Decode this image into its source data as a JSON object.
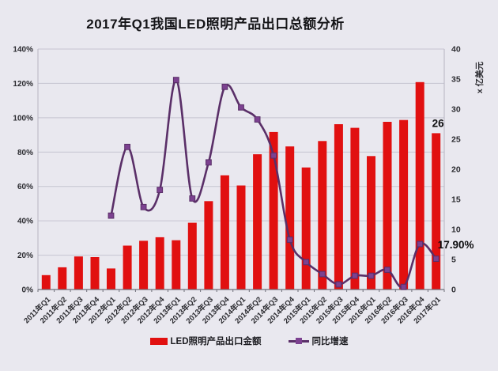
{
  "chart_data": {
    "type": "bar",
    "combo": "bar+line",
    "title": "2017年Q1我国LED照明产品出口总额分析",
    "categories": [
      "2011年Q1",
      "2011年Q2",
      "2011年Q3",
      "2011年Q4",
      "2012年Q1",
      "2012年Q2",
      "2012年Q3",
      "2012年Q4",
      "2013年Q1",
      "2013年Q2",
      "2013年Q3",
      "2013年Q4",
      "2014年Q1",
      "2014年Q2",
      "2014年Q3",
      "2014年Q4",
      "2015年Q1",
      "2015年Q2",
      "2015年Q3",
      "2015年Q4",
      "2016年Q1",
      "2016年Q2",
      "2016年Q3",
      "2016年Q4",
      "2017年Q1"
    ],
    "series": [
      {
        "name": "LED照明产品出口金额",
        "type": "bar",
        "axis": "right",
        "unit": "亿美元",
        "values": [
          2.4,
          3.7,
          5.5,
          5.4,
          3.5,
          7.3,
          8.1,
          8.7,
          8.2,
          11.1,
          14.7,
          19,
          17.3,
          22.5,
          26.2,
          23.8,
          20.3,
          24.7,
          27.5,
          26.9,
          22.2,
          27.9,
          28.2,
          34.5,
          26
        ]
      },
      {
        "name": "同比增速",
        "type": "line",
        "axis": "left",
        "unit": "%",
        "values": [
          null,
          null,
          null,
          null,
          43,
          83,
          48,
          58,
          122,
          53,
          74,
          118,
          106,
          99,
          78,
          29,
          16,
          9,
          3,
          8,
          8,
          11.5,
          1.5,
          26.5,
          17.9
        ]
      }
    ],
    "left_axis": {
      "min": 0,
      "max": 140,
      "ticks": [
        "0%",
        "20%",
        "40%",
        "60%",
        "80%",
        "100%",
        "120%",
        "140%"
      ]
    },
    "right_axis": {
      "min": 0,
      "max": 40,
      "ticks": [
        "0",
        "5",
        "10",
        "15",
        "20",
        "25",
        "30",
        "35",
        "40"
      ],
      "title": "x 亿美元"
    },
    "annotations": [
      {
        "text": "26",
        "type": "bar-label",
        "category_index": 24
      },
      {
        "text": "17.90%",
        "type": "line-label",
        "category_index": 24
      }
    ],
    "grid": "horizontal",
    "legend_position": "bottom",
    "colors": {
      "background": "#e9e8ef",
      "bar": "#e11010",
      "line": "#5a2f68",
      "marker": "#7c4190",
      "grid": "#c6c5d1",
      "axis": "#70707a",
      "text": "#2b2b30"
    }
  }
}
